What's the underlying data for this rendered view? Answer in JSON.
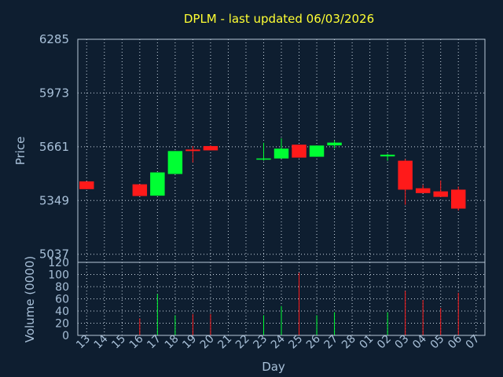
{
  "chart_data": {
    "type": "candlestick",
    "title": "DPLM - last updated 06/03/2026",
    "xlabel": "Day",
    "price_ylabel": "Price",
    "volume_ylabel": "Volume (0000)",
    "x_ticks": [
      "13",
      "14",
      "15",
      "16",
      "17",
      "18",
      "19",
      "20",
      "21",
      "22",
      "23",
      "24",
      "25",
      "26",
      "27",
      "28",
      "01",
      "02",
      "03",
      "04",
      "05",
      "06",
      "07"
    ],
    "price_ticks": [
      6285,
      5973,
      5661,
      5349,
      5037
    ],
    "price_ylim": [
      4990,
      6285
    ],
    "volume_ticks": [
      120,
      100,
      80,
      60,
      40,
      20,
      0
    ],
    "volume_ylim": [
      0,
      120
    ],
    "up_color": "#00ff33",
    "down_color": "#ff1a1a",
    "grid": true,
    "candles": [
      {
        "day": "13",
        "open": 5460,
        "high": 5460,
        "low": 5415,
        "close": 5415,
        "volume": 0
      },
      {
        "day": "16",
        "open": 5443,
        "high": 5443,
        "low": 5375,
        "close": 5375,
        "volume": 28
      },
      {
        "day": "17",
        "open": 5377,
        "high": 5512,
        "low": 5377,
        "close": 5512,
        "volume": 68
      },
      {
        "day": "18",
        "open": 5503,
        "high": 5636,
        "low": 5503,
        "close": 5636,
        "volume": 33
      },
      {
        "day": "19",
        "open": 5645,
        "high": 5665,
        "low": 5570,
        "close": 5636,
        "volume": 35
      },
      {
        "day": "20",
        "open": 5665,
        "high": 5670,
        "low": 5640,
        "close": 5640,
        "volume": 35
      },
      {
        "day": "23",
        "open": 5593,
        "high": 5684,
        "low": 5580,
        "close": 5593,
        "volume": 33
      },
      {
        "day": "24",
        "open": 5593,
        "high": 5710,
        "low": 5593,
        "close": 5650,
        "volume": 48
      },
      {
        "day": "25",
        "open": 5673,
        "high": 5673,
        "low": 5598,
        "close": 5598,
        "volume": 103
      },
      {
        "day": "26",
        "open": 5603,
        "high": 5668,
        "low": 5603,
        "close": 5668,
        "volume": 33
      },
      {
        "day": "27",
        "open": 5669,
        "high": 5699,
        "low": 5650,
        "close": 5685,
        "volume": 38
      },
      {
        "day": "02",
        "open": 5605,
        "high": 5620,
        "low": 5580,
        "close": 5615,
        "volume": 38
      },
      {
        "day": "03",
        "open": 5580,
        "high": 5590,
        "low": 5324,
        "close": 5412,
        "volume": 73
      },
      {
        "day": "04",
        "open": 5420,
        "high": 5440,
        "low": 5392,
        "close": 5392,
        "volume": 58
      },
      {
        "day": "05",
        "open": 5402,
        "high": 5465,
        "low": 5370,
        "close": 5370,
        "volume": 45
      },
      {
        "day": "06",
        "open": 5412,
        "high": 5430,
        "low": 5290,
        "close": 5302,
        "volume": 70
      }
    ]
  }
}
